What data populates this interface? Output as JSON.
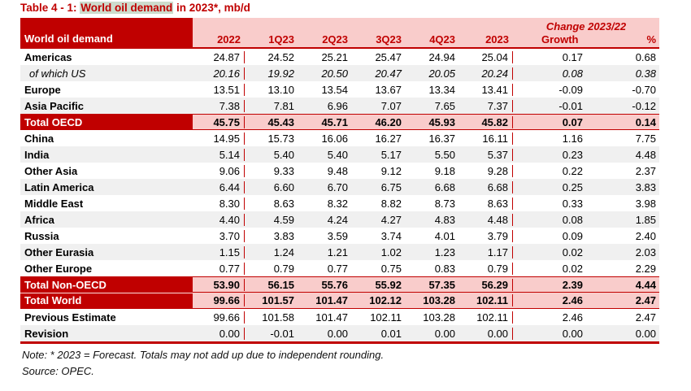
{
  "title": {
    "prefix": "Table 4 - 1: ",
    "highlight": "World oil demand",
    "suffix": " in 2023*, mb/d"
  },
  "chart_data": {
    "type": "table",
    "title": "Table 4 - 1: World oil demand in 2023*, mb/d",
    "unit": "mb/d",
    "header_label": "World oil demand",
    "change_header": "Change 2023/22",
    "columns": [
      "2022",
      "1Q23",
      "2Q23",
      "3Q23",
      "4Q23",
      "2023",
      "Growth",
      "%"
    ],
    "rows": [
      {
        "label": "Americas",
        "style": "data",
        "shaded": false,
        "values": [
          "24.87",
          "24.52",
          "25.21",
          "25.47",
          "24.94",
          "25.04",
          "0.17",
          "0.68"
        ]
      },
      {
        "label": "of which US",
        "style": "italic",
        "shaded": true,
        "values": [
          "20.16",
          "19.92",
          "20.50",
          "20.47",
          "20.05",
          "20.24",
          "0.08",
          "0.38"
        ]
      },
      {
        "label": "Europe",
        "style": "data",
        "shaded": false,
        "values": [
          "13.51",
          "13.10",
          "13.54",
          "13.67",
          "13.34",
          "13.41",
          "-0.09",
          "-0.70"
        ]
      },
      {
        "label": "Asia Pacific",
        "style": "data",
        "shaded": true,
        "values": [
          "7.38",
          "7.81",
          "6.96",
          "7.07",
          "7.65",
          "7.37",
          "-0.01",
          "-0.12"
        ]
      },
      {
        "label": "Total OECD",
        "style": "total",
        "shaded": false,
        "values": [
          "45.75",
          "45.43",
          "45.71",
          "46.20",
          "45.93",
          "45.82",
          "0.07",
          "0.14"
        ]
      },
      {
        "label": "China",
        "style": "data",
        "shaded": false,
        "values": [
          "14.95",
          "15.73",
          "16.06",
          "16.27",
          "16.37",
          "16.11",
          "1.16",
          "7.75"
        ]
      },
      {
        "label": "India",
        "style": "data",
        "shaded": true,
        "values": [
          "5.14",
          "5.40",
          "5.40",
          "5.17",
          "5.50",
          "5.37",
          "0.23",
          "4.48"
        ]
      },
      {
        "label": "Other Asia",
        "style": "data",
        "shaded": false,
        "values": [
          "9.06",
          "9.33",
          "9.48",
          "9.12",
          "9.18",
          "9.28",
          "0.22",
          "2.37"
        ]
      },
      {
        "label": "Latin America",
        "style": "data",
        "shaded": true,
        "values": [
          "6.44",
          "6.60",
          "6.70",
          "6.75",
          "6.68",
          "6.68",
          "0.25",
          "3.83"
        ]
      },
      {
        "label": "Middle East",
        "style": "data",
        "shaded": false,
        "values": [
          "8.30",
          "8.63",
          "8.32",
          "8.82",
          "8.73",
          "8.63",
          "0.33",
          "3.98"
        ]
      },
      {
        "label": "Africa",
        "style": "data",
        "shaded": true,
        "values": [
          "4.40",
          "4.59",
          "4.24",
          "4.27",
          "4.83",
          "4.48",
          "0.08",
          "1.85"
        ]
      },
      {
        "label": "Russia",
        "style": "data",
        "shaded": false,
        "values": [
          "3.70",
          "3.83",
          "3.59",
          "3.74",
          "4.01",
          "3.79",
          "0.09",
          "2.40"
        ]
      },
      {
        "label": "Other Eurasia",
        "style": "data",
        "shaded": true,
        "values": [
          "1.15",
          "1.24",
          "1.21",
          "1.02",
          "1.23",
          "1.17",
          "0.02",
          "2.03"
        ]
      },
      {
        "label": "Other Europe",
        "style": "data",
        "shaded": false,
        "values": [
          "0.77",
          "0.79",
          "0.77",
          "0.75",
          "0.83",
          "0.79",
          "0.02",
          "2.29"
        ]
      },
      {
        "label": "Total Non-OECD",
        "style": "total",
        "shaded": false,
        "values": [
          "53.90",
          "56.15",
          "55.76",
          "55.92",
          "57.35",
          "56.29",
          "2.39",
          "4.44"
        ]
      },
      {
        "label": "Total World",
        "style": "total",
        "shaded": false,
        "values": [
          "99.66",
          "101.57",
          "101.47",
          "102.12",
          "103.28",
          "102.11",
          "2.46",
          "2.47"
        ]
      },
      {
        "label": "Previous Estimate",
        "style": "estimate",
        "shaded": false,
        "values": [
          "99.66",
          "101.58",
          "101.47",
          "102.11",
          "103.28",
          "102.11",
          "2.46",
          "2.47"
        ]
      },
      {
        "label": "Revision",
        "style": "estimate",
        "shaded": true,
        "values": [
          "0.00",
          "-0.01",
          "0.00",
          "0.01",
          "0.00",
          "0.00",
          "0.00",
          "0.00"
        ]
      }
    ]
  },
  "notes": {
    "note": "Note: * 2023 = Forecast. Totals may not add up due to independent rounding.",
    "source": "Source: OPEC."
  },
  "colors": {
    "dark_red": "#C00000",
    "pink": "#F9CCCB",
    "stripe": "#F0F0F0",
    "highlight": "#CDDCCD"
  }
}
